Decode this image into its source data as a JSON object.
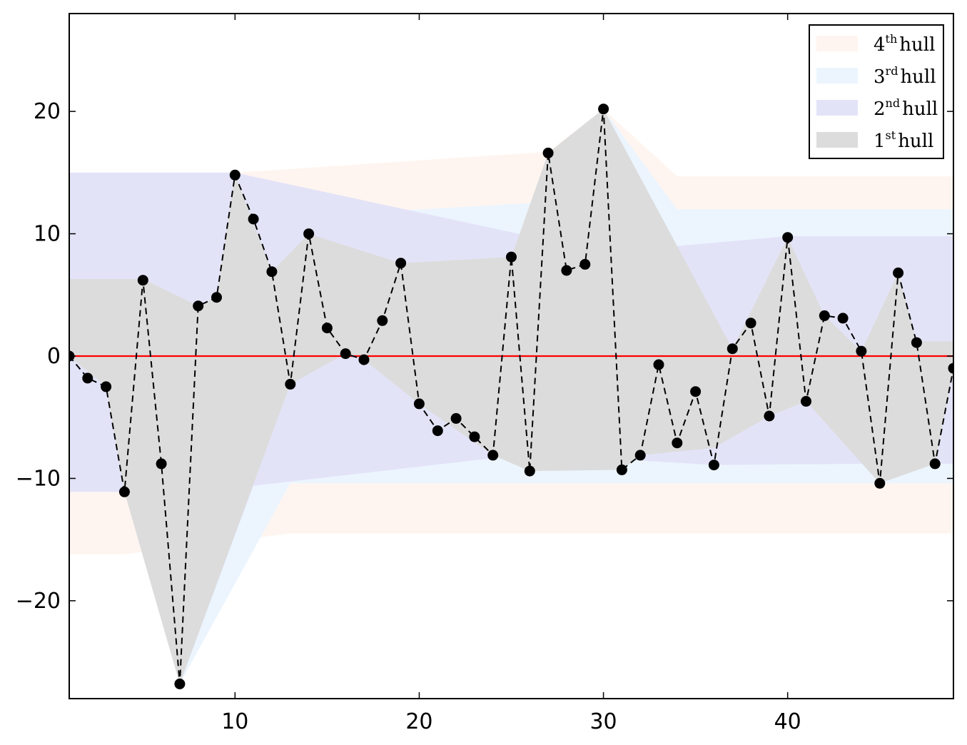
{
  "chart_data": {
    "type": "line",
    "title": "",
    "xlabel": "",
    "ylabel": "",
    "xlim": [
      1,
      49
    ],
    "ylim": [
      -28,
      28
    ],
    "xticks": [
      10,
      20,
      30,
      40
    ],
    "xtick_labels": [
      "10",
      "20",
      "30",
      "40"
    ],
    "yticks": [
      -20,
      -10,
      0,
      10,
      20
    ],
    "ytick_labels": [
      "−20",
      "−10",
      "0",
      "10",
      "20"
    ],
    "grid": false,
    "legend_position": "top-right",
    "zero_line": {
      "y": 0,
      "color": "#ff0000"
    },
    "series": [
      {
        "style": "dashed-line-with-markers",
        "color": "#000000",
        "x": [
          1,
          2,
          3,
          4,
          5,
          6,
          7,
          8,
          9,
          10,
          11,
          12,
          13,
          14,
          15,
          16,
          17,
          18,
          19,
          20,
          21,
          22,
          23,
          24,
          25,
          26,
          27,
          28,
          29,
          30,
          31,
          32,
          33,
          34,
          35,
          36,
          37,
          38,
          39,
          40,
          41,
          42,
          43,
          44,
          45,
          46,
          47,
          48,
          49
        ],
        "y": [
          0,
          -1.8,
          -2.5,
          -11.1,
          6.2,
          -8.8,
          -26.8,
          4.1,
          4.8,
          14.8,
          11.2,
          6.9,
          -2.3,
          10,
          2.3,
          0.2,
          -0.3,
          2.9,
          7.6,
          -3.9,
          -6.1,
          -5.1,
          -6.6,
          -8.1,
          8.1,
          -9.4,
          16.6,
          7.0,
          7.5,
          20.2,
          -9.3,
          -8.1,
          -0.7,
          -7.1,
          -2.9,
          -8.9,
          0.6,
          2.7,
          -4.9,
          9.7,
          -3.7,
          3.3,
          3.1,
          0.4,
          -10.4,
          6.8,
          1.1,
          -8.8,
          -1
        ]
      }
    ],
    "hulls": [
      {
        "name": "4th hull",
        "ordinal": "4",
        "suffix": "th",
        "color": "#fff5f0",
        "upper": [
          [
            1,
            15
          ],
          [
            10,
            15
          ],
          [
            27,
            16.7
          ],
          [
            30,
            20.2
          ],
          [
            34,
            14.7
          ],
          [
            49,
            14.7
          ]
        ],
        "lower": [
          [
            1,
            -16.2
          ],
          [
            4,
            -16.2
          ],
          [
            13,
            -14.5
          ],
          [
            49,
            -14.5
          ]
        ]
      },
      {
        "name": "3rd hull",
        "ordinal": "3",
        "suffix": "rd",
        "color": "#ecf5fe",
        "upper": [
          [
            1,
            15
          ],
          [
            10,
            15
          ],
          [
            11,
            11.2
          ],
          [
            27,
            12.6
          ],
          [
            30,
            20.2
          ],
          [
            34,
            12.0
          ],
          [
            49,
            12.0
          ]
        ],
        "lower": [
          [
            1,
            -11.1
          ],
          [
            4,
            -11.1
          ],
          [
            7,
            -26.8
          ],
          [
            13,
            -10.4
          ],
          [
            49,
            -10.4
          ]
        ]
      },
      {
        "name": "2nd hull",
        "ordinal": "2",
        "suffix": "nd",
        "color": "#e3e3f8",
        "upper": [
          [
            1,
            15
          ],
          [
            10,
            15
          ],
          [
            30,
            8.5
          ],
          [
            34,
            9.0
          ],
          [
            40,
            9.8
          ],
          [
            49,
            9.8
          ]
        ],
        "lower": [
          [
            1,
            -11.1
          ],
          [
            4,
            -11.1
          ],
          [
            7,
            -26.8
          ],
          [
            11,
            -10.6
          ],
          [
            26,
            -8.0
          ],
          [
            36,
            -8.9
          ],
          [
            45,
            -8.8
          ],
          [
            49,
            -8.8
          ]
        ]
      },
      {
        "name": "1st hull",
        "ordinal": "1",
        "suffix": "st",
        "color": "#dcdcdc",
        "upper": [
          [
            1,
            6.3
          ],
          [
            5,
            6.3
          ],
          [
            8,
            4.1
          ],
          [
            9,
            4.8
          ],
          [
            10,
            14.8
          ],
          [
            12,
            6.9
          ],
          [
            14,
            10
          ],
          [
            19,
            7.6
          ],
          [
            25,
            8.1
          ],
          [
            27,
            16.6
          ],
          [
            30,
            20.2
          ],
          [
            37,
            0.6
          ],
          [
            40,
            9.7
          ],
          [
            42,
            3.3
          ],
          [
            44,
            0.4
          ],
          [
            46,
            6.8
          ],
          [
            47,
            1.2
          ],
          [
            49,
            1.2
          ]
        ],
        "lower": [
          [
            1,
            0
          ],
          [
            3,
            -2.5
          ],
          [
            4,
            -11.1
          ],
          [
            7,
            -26.8
          ],
          [
            13,
            -2.3
          ],
          [
            16,
            0.2
          ],
          [
            17,
            -0.3
          ],
          [
            20,
            -3.9
          ],
          [
            24,
            -8.1
          ],
          [
            26,
            -9.4
          ],
          [
            31,
            -9.3
          ],
          [
            32,
            -8.1
          ],
          [
            36,
            -7.5
          ],
          [
            39,
            -4.9
          ],
          [
            41,
            -3.7
          ],
          [
            45,
            -10.4
          ],
          [
            48,
            -8.8
          ],
          [
            49,
            -1
          ]
        ]
      }
    ],
    "legend": [
      {
        "ordinal": "4",
        "suffix": "th",
        "text": "hull",
        "color": "#fff5f0"
      },
      {
        "ordinal": "3",
        "suffix": "rd",
        "text": "hull",
        "color": "#ecf5fe"
      },
      {
        "ordinal": "2",
        "suffix": "nd",
        "text": "hull",
        "color": "#e3e3f8"
      },
      {
        "ordinal": "1",
        "suffix": "st",
        "text": "hull",
        "color": "#dcdcdc"
      }
    ]
  }
}
